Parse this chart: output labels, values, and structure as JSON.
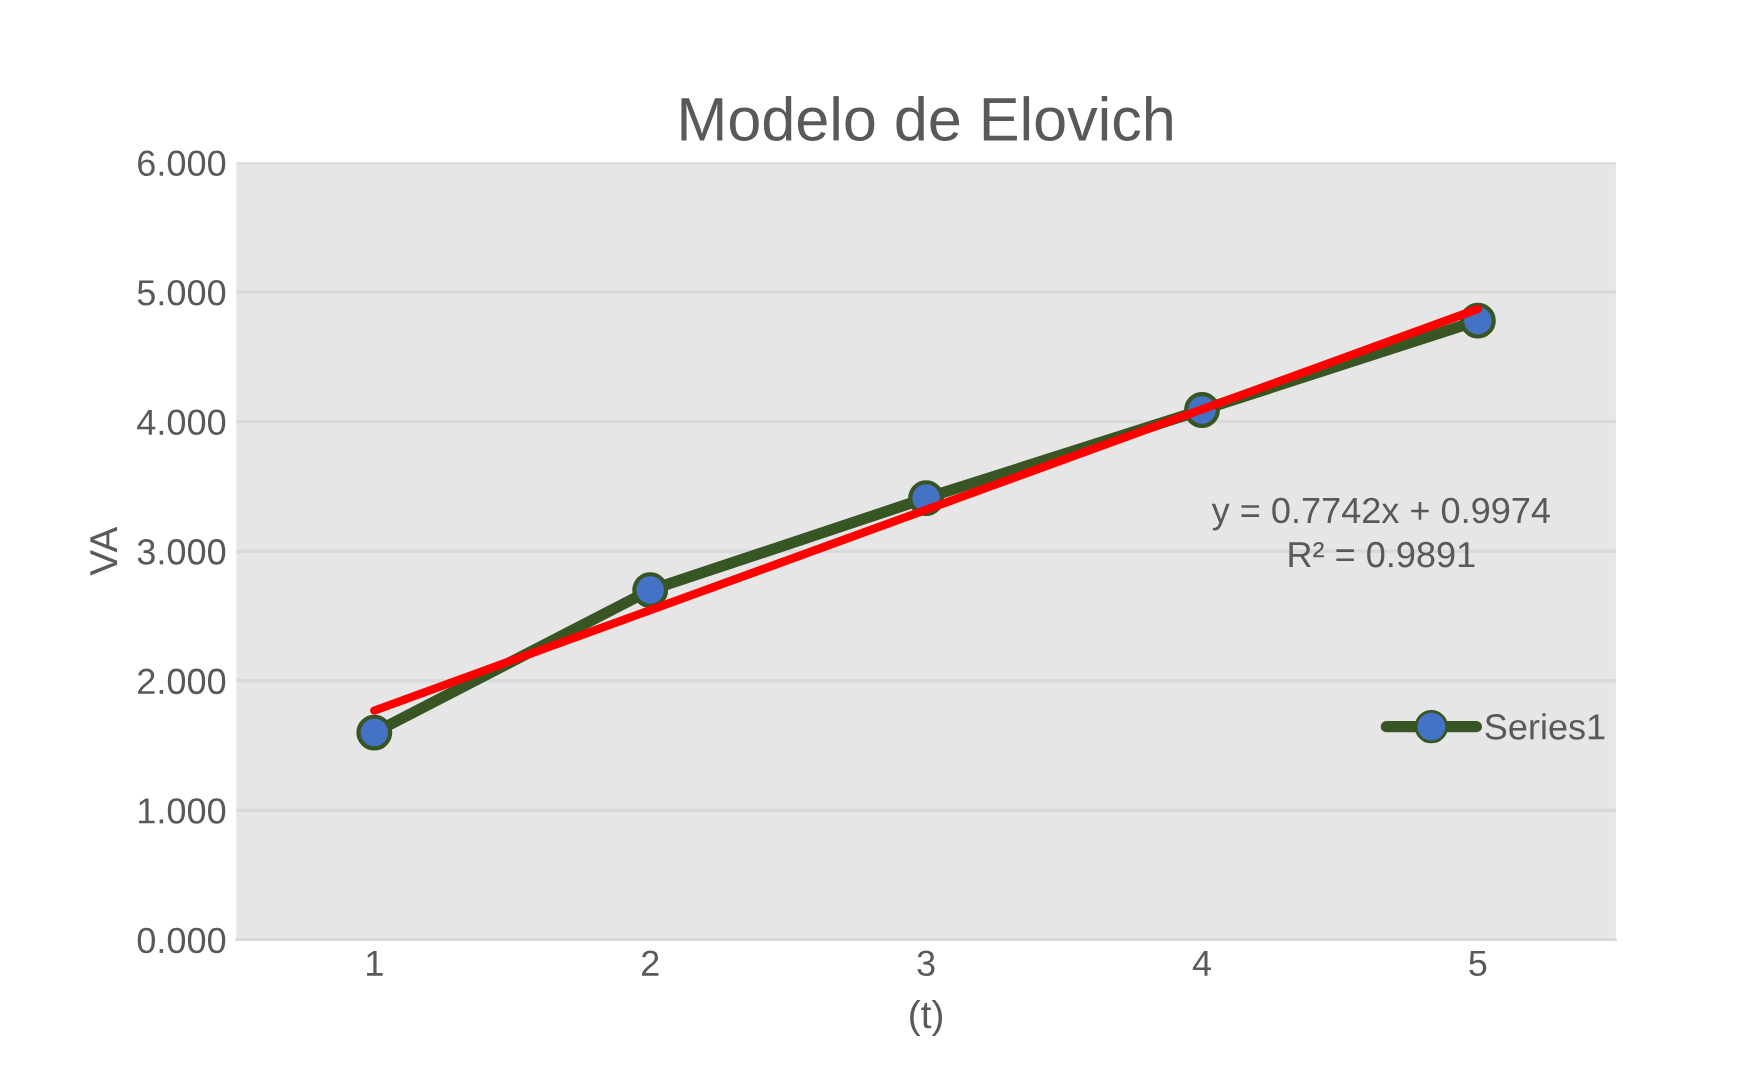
{
  "chart_data": {
    "type": "line",
    "title": "Modelo de Elovich",
    "xlabel": "(t)",
    "ylabel": "VA",
    "x": [
      1,
      2,
      3,
      4,
      5
    ],
    "series": [
      {
        "name": "Series1",
        "color": "#375623",
        "colors": [
          "#4472c4",
          "#4472c4",
          "#4472c4",
          "#4472c4",
          "#4472c4"
        ],
        "marker": "circle",
        "values": [
          1.6,
          2.7,
          3.41,
          4.09,
          4.78
        ]
      },
      {
        "type": "line",
        "color": "#ff0000",
        "marker": "none",
        "x": [
          1,
          5
        ],
        "values": [
          1.77,
          4.87
        ]
      }
    ],
    "xlim": [
      0.5,
      5.5
    ],
    "xticks": [
      1,
      2,
      3,
      4,
      5
    ],
    "ylim": [
      0,
      6
    ],
    "yticks": [
      {
        "value": 0,
        "label": "0.000"
      },
      {
        "value": 1,
        "label": "1.000"
      },
      {
        "value": 2,
        "label": "2.000"
      },
      {
        "value": 3,
        "label": "3.000"
      },
      {
        "value": 4,
        "label": "4.000"
      },
      {
        "value": 5,
        "label": "5.000"
      },
      {
        "value": 6,
        "label": "6.000"
      }
    ],
    "grid": "y",
    "legend": "right",
    "annotations": [
      "y = 0.7742x + 0.9974\nR² = 0.9891"
    ]
  }
}
